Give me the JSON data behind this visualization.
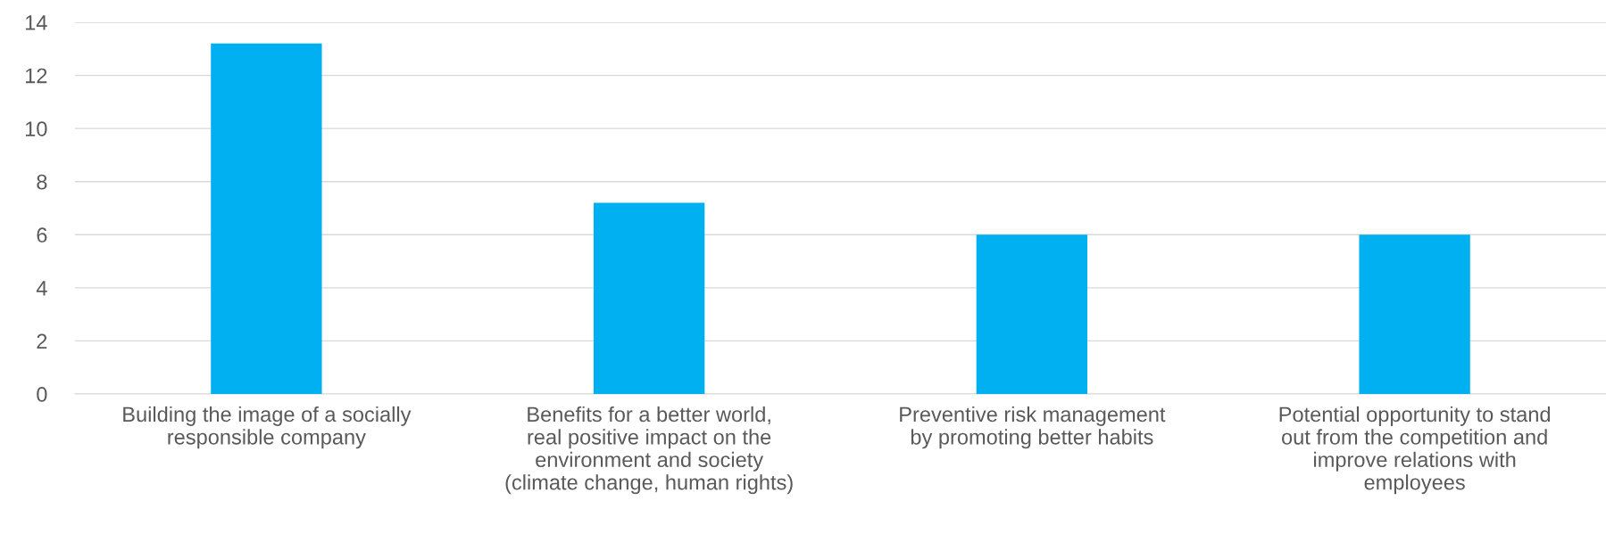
{
  "chart_data": {
    "type": "bar",
    "categories": [
      "Building the image of a socially\nresponsible company",
      "Benefits for a better world,\nreal positive impact on the\nenvironment and society\n(climate change, human rights)",
      "Preventive risk management\nby promoting better habits",
      "Potential opportunity to stand\nout from the competition and\nimprove relations with\nemployees"
    ],
    "values": [
      13.2,
      7.2,
      6,
      6
    ],
    "color": "#00b0f0",
    "ylim": [
      0,
      14
    ],
    "yticks": [
      0,
      2,
      4,
      6,
      8,
      10,
      12,
      14
    ],
    "grid": "y",
    "legend": false
  }
}
